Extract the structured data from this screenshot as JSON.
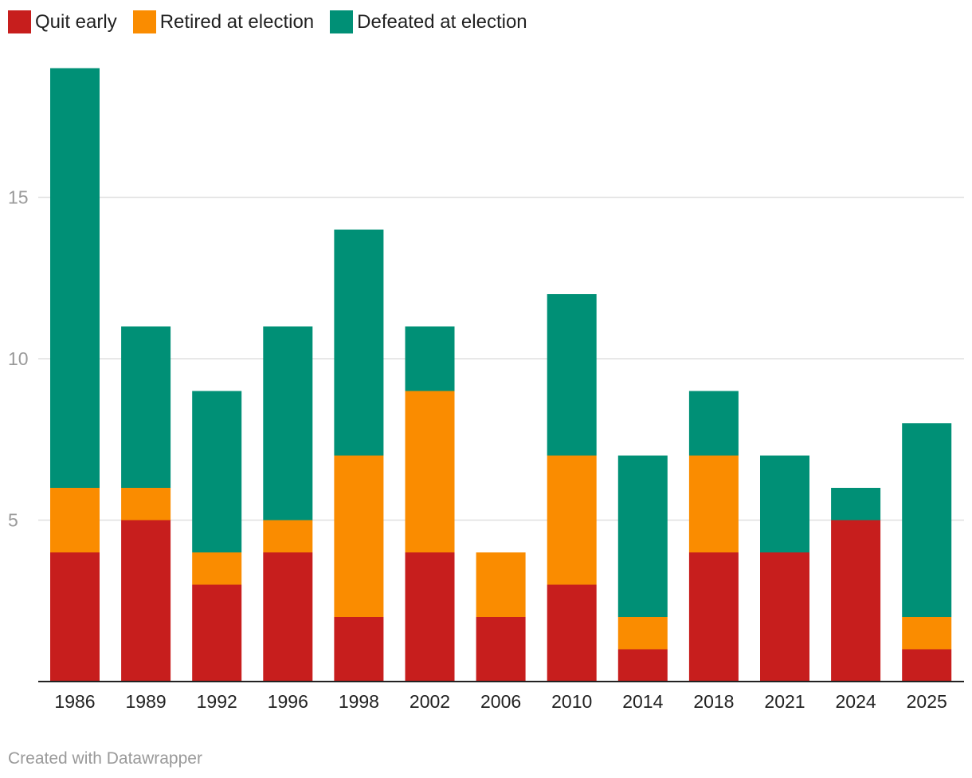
{
  "chart_data": {
    "type": "bar",
    "stacked": true,
    "categories": [
      "1986",
      "1989",
      "1992",
      "1996",
      "1998",
      "2002",
      "2006",
      "2010",
      "2014",
      "2018",
      "2021",
      "2024",
      "2025"
    ],
    "series": [
      {
        "name": "Quit early",
        "color": "#c71e1d",
        "values": [
          4,
          5,
          3,
          4,
          2,
          4,
          2,
          3,
          1,
          4,
          4,
          5,
          1
        ]
      },
      {
        "name": "Retired at election",
        "color": "#fa8c00",
        "values": [
          2,
          1,
          1,
          1,
          5,
          5,
          2,
          4,
          1,
          3,
          0,
          0,
          1
        ]
      },
      {
        "name": "Defeated at election",
        "color": "#009076",
        "values": [
          13,
          5,
          5,
          6,
          7,
          2,
          0,
          5,
          5,
          2,
          3,
          1,
          6
        ]
      }
    ],
    "y_ticks": [
      5,
      10,
      15
    ],
    "ylim": [
      0,
      19
    ],
    "grid": true,
    "legend_position": "top-left",
    "title": "",
    "xlabel": "",
    "ylabel": ""
  },
  "footer": {
    "credit": "Created with Datawrapper"
  }
}
